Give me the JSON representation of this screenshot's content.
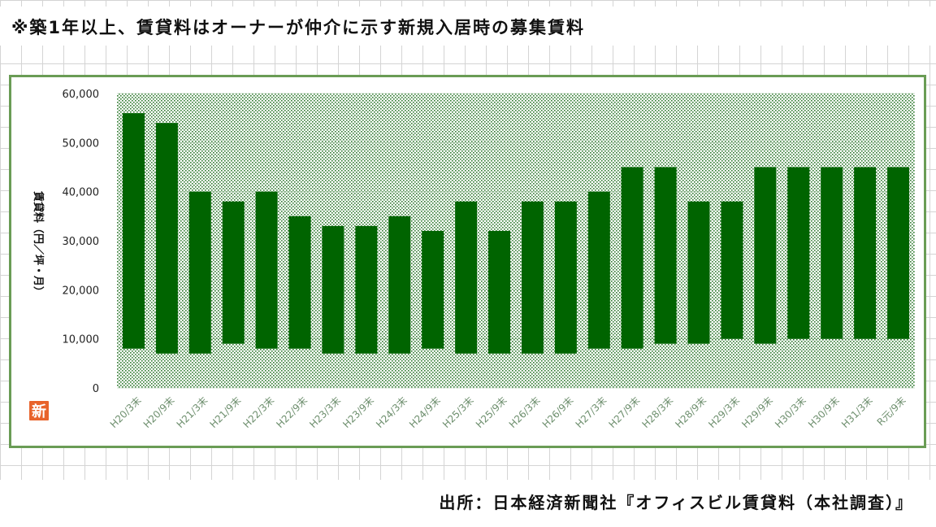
{
  "note": "※築1年以上、賃貸料はオーナーが仲介に示す新規入居時の募集賃料",
  "source": "出所：日本経済新聞社『オフィスビル賃貸料（本社調査）』",
  "logo_char": "新",
  "colors": {
    "bar": "#006400",
    "plot_dots": "#2f7a2f",
    "frame": "#6a9c55",
    "logo": "#e8632b"
  },
  "chart_data": {
    "type": "bar",
    "subtype": "floating-range",
    "title": "",
    "xlabel": "",
    "ylabel": "賃貸料（円／坪・月）",
    "ylim": [
      0,
      60000
    ],
    "yticks": [
      0,
      10000,
      20000,
      30000,
      40000,
      50000,
      60000
    ],
    "ytick_labels": [
      "0",
      "10,000",
      "20,000",
      "30,000",
      "40,000",
      "50,000",
      "60,000"
    ],
    "grid": true,
    "legend": "none",
    "categories": [
      "H20/3末",
      "H20/9末",
      "H21/3末",
      "H21/9末",
      "H22/3末",
      "H22/9末",
      "H23/3末",
      "H23/9末",
      "H24/3末",
      "H24/9末",
      "H25/3末",
      "H25/9末",
      "H26/3末",
      "H26/9末",
      "H27/3末",
      "H27/9末",
      "H28/3末",
      "H28/9末",
      "H29/3末",
      "H29/9末",
      "H30/3末",
      "H30/9末",
      "H31/3末",
      "R元/9末"
    ],
    "series": [
      {
        "low": [
          8000,
          7000,
          7000,
          9000,
          8000,
          8000,
          7000,
          7000,
          7000,
          8000,
          7000,
          7000,
          7000,
          7000,
          8000,
          8000,
          9000,
          9000,
          10000,
          9000,
          10000,
          10000,
          10000,
          10000
        ],
        "high": [
          56000,
          54000,
          40000,
          38000,
          40000,
          35000,
          33000,
          33000,
          35000,
          32000,
          38000,
          32000,
          38000,
          38000,
          40000,
          45000,
          45000,
          38000,
          38000,
          45000,
          45000,
          45000,
          45000,
          45000
        ]
      }
    ]
  }
}
